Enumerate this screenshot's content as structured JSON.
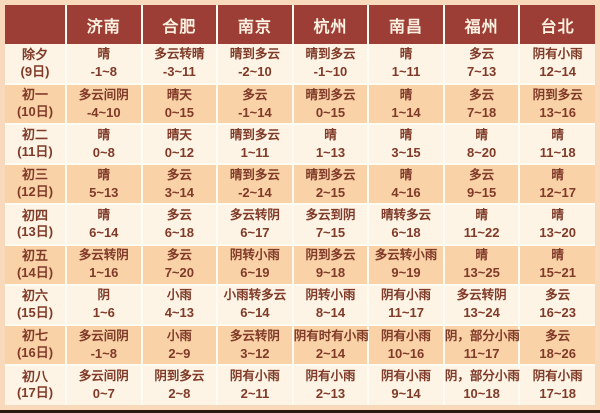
{
  "colors": {
    "page_bg": "#f8d9bc",
    "header_bg": "#9d3e36",
    "header_text": "#fcf2e2",
    "row_light": "#fdf4e5",
    "row_peach": "#f9d2a8",
    "text": "#803a28",
    "grid": "#fefbf2"
  },
  "chart_data": {
    "type": "table",
    "title": "",
    "corner_label": "",
    "columns": [
      "济南",
      "合肥",
      "南京",
      "杭州",
      "南昌",
      "福州",
      "台北"
    ],
    "rows": [
      {
        "day": "除夕",
        "date": "(9日)",
        "cells": [
          [
            "晴",
            "-1~8"
          ],
          [
            "多云转晴",
            "-3~11"
          ],
          [
            "晴到多云",
            "-2~10"
          ],
          [
            "晴到多云",
            "-1~10"
          ],
          [
            "晴",
            "1~11"
          ],
          [
            "多云",
            "7~13"
          ],
          [
            "阴有小雨",
            "12~14"
          ]
        ]
      },
      {
        "day": "初一",
        "date": "(10日)",
        "cells": [
          [
            "多云间阴",
            "-4~10"
          ],
          [
            "晴天",
            "0~15"
          ],
          [
            "多云",
            "-1~14"
          ],
          [
            "晴到多云",
            "0~15"
          ],
          [
            "晴",
            "1~14"
          ],
          [
            "多云",
            "7~18"
          ],
          [
            "阴到多云",
            "13~16"
          ]
        ]
      },
      {
        "day": "初二",
        "date": "(11日)",
        "cells": [
          [
            "晴",
            "0~8"
          ],
          [
            "晴天",
            "0~12"
          ],
          [
            "晴到多云",
            "1~11"
          ],
          [
            "晴",
            "1~13"
          ],
          [
            "晴",
            "3~15"
          ],
          [
            "晴",
            "8~20"
          ],
          [
            "晴",
            "11~18"
          ]
        ]
      },
      {
        "day": "初三",
        "date": "(12日)",
        "cells": [
          [
            "晴",
            "5~13"
          ],
          [
            "多云",
            "3~14"
          ],
          [
            "晴到多云",
            "-2~14"
          ],
          [
            "晴到多云",
            "2~15"
          ],
          [
            "晴",
            "4~16"
          ],
          [
            "多云",
            "9~15"
          ],
          [
            "晴",
            "12~17"
          ]
        ]
      },
      {
        "day": "初四",
        "date": "(13日)",
        "cells": [
          [
            "晴",
            "6~14"
          ],
          [
            "多云",
            "6~18"
          ],
          [
            "多云转阴",
            "6~17"
          ],
          [
            "多云到阴",
            "7~15"
          ],
          [
            "晴转多云",
            "6~18"
          ],
          [
            "晴",
            "11~22"
          ],
          [
            "晴",
            "13~20"
          ]
        ]
      },
      {
        "day": "初五",
        "date": "(14日)",
        "cells": [
          [
            "多云转阴",
            "1~16"
          ],
          [
            "多云",
            "7~20"
          ],
          [
            "阴转小雨",
            "6~19"
          ],
          [
            "阴到多云",
            "9~18"
          ],
          [
            "多云转小雨",
            "9~19"
          ],
          [
            "晴",
            "13~25"
          ],
          [
            "晴",
            "15~21"
          ]
        ]
      },
      {
        "day": "初六",
        "date": "(15日)",
        "cells": [
          [
            "阴",
            "1~6"
          ],
          [
            "小雨",
            "4~13"
          ],
          [
            "小雨转多云",
            "6~14"
          ],
          [
            "阴转小雨",
            "8~14"
          ],
          [
            "阴有小雨",
            "11~17"
          ],
          [
            "多云转阴",
            "13~24"
          ],
          [
            "多云",
            "16~23"
          ]
        ]
      },
      {
        "day": "初七",
        "date": "(16日)",
        "cells": [
          [
            "多云间阴",
            "-1~8"
          ],
          [
            "小雨",
            "2~9"
          ],
          [
            "多云转阴",
            "3~12"
          ],
          [
            "阴有时有小雨",
            "2~14"
          ],
          [
            "阴有小雨",
            "10~16"
          ],
          [
            "阴，部分小雨",
            "11~17"
          ],
          [
            "多云",
            "18~26"
          ]
        ]
      },
      {
        "day": "初八",
        "date": "(17日)",
        "cells": [
          [
            "多云间阴",
            "0~7"
          ],
          [
            "阴到多云",
            "2~8"
          ],
          [
            "阴有小雨",
            "2~11"
          ],
          [
            "阴有小雨",
            "2~13"
          ],
          [
            "阴有小雨",
            "9~14"
          ],
          [
            "阴，部分小雨",
            "10~18"
          ],
          [
            "阴有小雨",
            "17~18"
          ]
        ]
      }
    ]
  }
}
